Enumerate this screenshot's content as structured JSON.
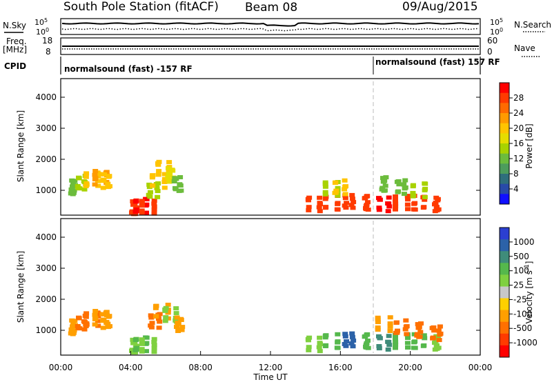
{
  "header": {
    "station": "South Pole Station (fitACF)",
    "beam": "Beam 08",
    "date": "09/Aug/2015"
  },
  "strips": {
    "nsky_label": "N.Sky",
    "nsky_tick_top": "10^5",
    "nsky_tick_bottom": "10^0",
    "nsearch_label": "N.Search",
    "nsearch_tick_top": "10^5",
    "nsearch_tick_bottom": "10^0",
    "freq_label": "Freq.",
    "freq_unit": "[MHz]",
    "freq_tick_top": "18",
    "freq_tick_bottom": "8",
    "nave_label": "Nave",
    "nave_tick_top": "60",
    "nave_tick_bottom": "0",
    "cpid_label": "CPID",
    "cpid_left": "normalsound (fast) -157 RF",
    "cpid_right": "normalsound (fast) 157 RF"
  },
  "power_colorbar": {
    "label": "Power [dB]",
    "ticks": [
      "28",
      "24",
      "20",
      "16",
      "12",
      "8",
      "4"
    ],
    "colors": [
      "#ff0000",
      "#ff3a00",
      "#ff6a00",
      "#ff9a00",
      "#ffc400",
      "#e6dc00",
      "#a8d200",
      "#6cbc3c",
      "#4d9c5c",
      "#2f6e7c",
      "#284aa8",
      "#1010ff"
    ]
  },
  "velocity_colorbar": {
    "label": "Velocity [m s^-1]",
    "ticks": [
      "1000",
      "500",
      "100",
      "25",
      "-25",
      "-100",
      "-500",
      "-1000"
    ],
    "colors": [
      "#2b3fd1",
      "#2c62a8",
      "#3f8c7a",
      "#55b84c",
      "#7fd040",
      "#c8c8c8",
      "#ffd000",
      "#ff9f00",
      "#ff7000",
      "#ff3a00",
      "#ff0000"
    ]
  },
  "chart_data": [
    {
      "type": "heatmap",
      "quantity": "power",
      "xlabel": "",
      "ylabel": "Slant Range [km]",
      "y_ticks": [
        "1000",
        "2000",
        "3000",
        "4000"
      ],
      "ylim": [
        200,
        4600
      ],
      "xlim_hours": [
        0,
        24
      ],
      "colorbar": "Power [dB]",
      "clim": [
        0,
        30
      ],
      "series": [
        {
          "x": [
            0.7,
            1.2,
            1.8,
            2.3,
            2.6
          ],
          "y": [
            1100,
            1250,
            1350,
            1400,
            1300
          ],
          "values": [
            10,
            14,
            18,
            22,
            18
          ]
        },
        {
          "x": [
            4.2,
            4.6,
            5.0
          ],
          "y": [
            450,
            500,
            450
          ],
          "values": [
            28,
            30,
            26
          ]
        },
        {
          "x": [
            5.3,
            5.6,
            5.9,
            6.3,
            6.7
          ],
          "y": [
            1000,
            1300,
            1700,
            1500,
            1200
          ],
          "values": [
            14,
            18,
            20,
            16,
            12
          ]
        },
        {
          "x": [
            14.5,
            15.5,
            16.5,
            17.5,
            18.5,
            19.5,
            20.5,
            21.5
          ],
          "y": [
            550,
            600,
            650,
            600,
            550,
            600,
            600,
            550
          ],
          "values": [
            26,
            28,
            27,
            28,
            29,
            28,
            27,
            26
          ]
        },
        {
          "x": [
            15.5,
            16.0,
            18.5,
            19.5,
            20.5
          ],
          "y": [
            1050,
            1100,
            1200,
            1100,
            1000
          ],
          "values": [
            14,
            18,
            10,
            12,
            14
          ]
        }
      ]
    },
    {
      "type": "heatmap",
      "quantity": "velocity",
      "xlabel": "Time UT",
      "ylabel": "Slant Range [km]",
      "x_ticks": [
        "00:00",
        "04:00",
        "08:00",
        "12:00",
        "16:00",
        "20:00",
        "00:00"
      ],
      "y_ticks": [
        "1000",
        "2000",
        "3000",
        "4000"
      ],
      "ylim": [
        200,
        4600
      ],
      "xlim_hours": [
        0,
        24
      ],
      "colorbar": "Velocity [m s^-1]",
      "clim": [
        -1000,
        1000
      ],
      "series": [
        {
          "x": [
            0.7,
            1.2,
            1.8,
            2.3,
            2.6
          ],
          "y": [
            1100,
            1250,
            1350,
            1400,
            1300
          ],
          "values": [
            -150,
            -200,
            -180,
            -150,
            -120
          ]
        },
        {
          "x": [
            4.2,
            4.6,
            5.0
          ],
          "y": [
            500,
            550,
            500
          ],
          "values": [
            60,
            80,
            50
          ]
        },
        {
          "x": [
            5.4,
            5.8,
            6.3,
            6.8
          ],
          "y": [
            1300,
            1600,
            1500,
            1200
          ],
          "values": [
            -200,
            -150,
            40,
            -120
          ]
        },
        {
          "x": [
            14.5,
            15.5,
            16.5,
            17.5,
            18.5,
            19.5,
            20.5,
            21.5
          ],
          "y": [
            550,
            650,
            700,
            650,
            600,
            650,
            650,
            600
          ],
          "values": [
            60,
            80,
            400,
            100,
            300,
            90,
            120,
            70
          ]
        },
        {
          "x": [
            18.5,
            19.5,
            20.5,
            21.5
          ],
          "y": [
            1200,
            1100,
            1000,
            900
          ],
          "values": [
            -150,
            -200,
            -180,
            -250
          ]
        }
      ]
    }
  ]
}
